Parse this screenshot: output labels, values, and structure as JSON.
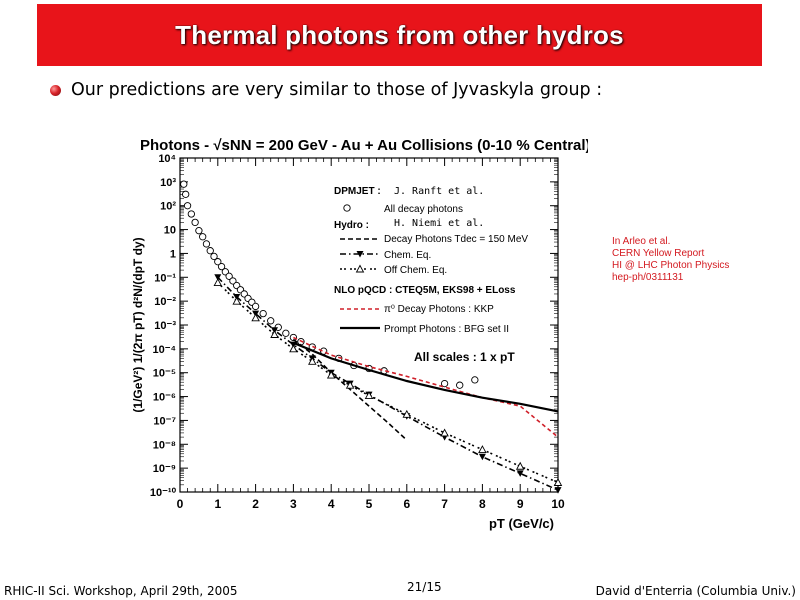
{
  "slide": {
    "title": "Thermal photons from other hydros",
    "bullet": "Our predictions are very similar to those of Jyvaskyla group :",
    "side_note": [
      "In Arleo et al.",
      "CERN Yellow Report",
      "HI @ LHC Photon Physics",
      "",
      "hep-ph/0311131"
    ],
    "footer_left": "RHIC-II Sci. Workshop, April 29th, 2005",
    "footer_center": "21/15",
    "footer_right": "David d'Enterria (Columbia Univ.)",
    "accent_color": "#e8141a"
  },
  "chart_data": {
    "type": "line",
    "title": "Photons - √sNN = 200 GeV - Au + Au Collisions (0-10 % Central)",
    "ylabel": "(1/GeV²) 1/(2π pT) d²N/(dpT dy)",
    "xlabel": "pT (GeV/c)",
    "xlim": [
      0,
      10
    ],
    "ylim": [
      1e-10,
      10000.0
    ],
    "yscale": "log",
    "x_ticks": [
      "0",
      "1",
      "2",
      "3",
      "4",
      "5",
      "6",
      "7",
      "8",
      "9",
      "10"
    ],
    "y_ticks": [
      "10⁴",
      "10³",
      "10²",
      "10",
      "1",
      "10⁻¹",
      "10⁻²",
      "10⁻³",
      "10⁻⁴",
      "10⁻⁵",
      "10⁻⁶",
      "10⁻⁷",
      "10⁻⁸",
      "10⁻⁹",
      "10⁻¹⁰"
    ],
    "legend": {
      "dpmjet_header": "DPMJET :",
      "dpmjet_ref": "J. Ranft et al.",
      "dpmjet_entry": "All decay photons",
      "hydro_header": "Hydro :",
      "hydro_ref": "H. Niemi et al.",
      "hydro_entry1": "Decay Photons  Tdec = 150 MeV",
      "hydro_entry2": "Chem. Eq.",
      "hydro_entry3": "Off Chem. Eq.",
      "nlo_header": "NLO pQCD : CTEQ5M, EKS98 + ELoss",
      "nlo_entry1": "π⁰ Decay Photons : KKP",
      "nlo_entry2": "Prompt Photons : BFG set II"
    },
    "annotation": "All scales : 1 x pT",
    "series": [
      {
        "name": "All decay photons",
        "style": "open-circle",
        "color": "#000000",
        "points": [
          [
            0.1,
            800
          ],
          [
            0.15,
            300
          ],
          [
            0.2,
            100
          ],
          [
            0.3,
            45
          ],
          [
            0.4,
            20
          ],
          [
            0.5,
            9
          ],
          [
            0.6,
            5
          ],
          [
            0.7,
            2.5
          ],
          [
            0.8,
            1.3
          ],
          [
            0.9,
            0.75
          ],
          [
            1.0,
            0.45
          ],
          [
            1.1,
            0.28
          ],
          [
            1.2,
            0.17
          ],
          [
            1.3,
            0.11
          ],
          [
            1.4,
            0.07
          ],
          [
            1.5,
            0.045
          ],
          [
            1.6,
            0.03
          ],
          [
            1.7,
            0.02
          ],
          [
            1.8,
            0.013
          ],
          [
            1.9,
            0.009
          ],
          [
            2.0,
            0.006
          ],
          [
            2.2,
            0.003
          ],
          [
            2.4,
            0.0015
          ],
          [
            2.6,
            0.0008
          ],
          [
            2.8,
            0.00045
          ],
          [
            3.0,
            0.0003
          ],
          [
            3.2,
            0.0002
          ],
          [
            3.5,
            0.00012
          ],
          [
            3.8,
            8e-05
          ],
          [
            4.2,
            4e-05
          ],
          [
            4.6,
            2e-05
          ],
          [
            5.0,
            1.5e-05
          ],
          [
            5.4,
            1.2e-05
          ],
          [
            7.0,
            3.5e-06
          ],
          [
            7.4,
            3e-06
          ],
          [
            7.8,
            5e-06
          ]
        ]
      },
      {
        "name": "Decay Photons Tdec = 150 MeV",
        "style": "dashed",
        "color": "#000000",
        "points": [
          [
            3.0,
            0.00025
          ],
          [
            3.5,
            6e-05
          ],
          [
            4.0,
            1e-05
          ],
          [
            4.5,
            2e-06
          ],
          [
            5.0,
            4e-07
          ],
          [
            5.5,
            8e-08
          ],
          [
            6.0,
            1.5e-08
          ]
        ]
      },
      {
        "name": "Chem. Eq.",
        "style": "dash-dot-filled-triangle",
        "color": "#000000",
        "points": [
          [
            1.0,
            0.1
          ],
          [
            1.5,
            0.015
          ],
          [
            2.0,
            0.003
          ],
          [
            2.5,
            0.0006
          ],
          [
            3.0,
            0.00015
          ],
          [
            3.5,
            4e-05
          ],
          [
            4.0,
            1e-05
          ],
          [
            4.5,
            3.5e-06
          ],
          [
            5.0,
            1.2e-06
          ],
          [
            6.0,
            1.5e-07
          ],
          [
            7.0,
            2e-08
          ],
          [
            8.0,
            3e-09
          ],
          [
            9.0,
            6e-10
          ],
          [
            10.0,
            1.2e-10
          ]
        ]
      },
      {
        "name": "Off Chem. Eq.",
        "style": "dash-dot-open-triangle",
        "color": "#000000",
        "points": [
          [
            1.0,
            0.06
          ],
          [
            1.5,
            0.01
          ],
          [
            2.0,
            0.002
          ],
          [
            2.5,
            0.0004
          ],
          [
            3.0,
            0.0001
          ],
          [
            3.5,
            3e-05
          ],
          [
            4.0,
            8e-06
          ],
          [
            4.5,
            3e-06
          ],
          [
            5.0,
            1.1e-06
          ],
          [
            6.0,
            1.8e-07
          ],
          [
            7.0,
            3e-08
          ],
          [
            8.0,
            6e-09
          ],
          [
            9.0,
            1.2e-09
          ],
          [
            10.0,
            2.5e-10
          ]
        ]
      },
      {
        "name": "π⁰ Decay Photons : KKP",
        "style": "red-dashed",
        "color": "#d0202a",
        "points": [
          [
            3.0,
            0.0003
          ],
          [
            4.0,
            5.5e-05
          ],
          [
            5.0,
            1.8e-05
          ],
          [
            6.0,
            7e-06
          ],
          [
            7.0,
            2.5e-06
          ],
          [
            8.0,
            9e-07
          ],
          [
            9.0,
            4e-07
          ],
          [
            10.0,
            2e-08
          ]
        ]
      },
      {
        "name": "Prompt Photons : BFG set II",
        "style": "solid",
        "color": "#000000",
        "points": [
          [
            3.0,
            0.00018
          ],
          [
            4.0,
            4e-05
          ],
          [
            5.0,
            1.3e-05
          ],
          [
            6.0,
            4.5e-06
          ],
          [
            7.0,
            1.9e-06
          ],
          [
            8.0,
            9e-07
          ],
          [
            9.0,
            5e-07
          ],
          [
            10.0,
            2.4e-07
          ]
        ]
      }
    ]
  }
}
